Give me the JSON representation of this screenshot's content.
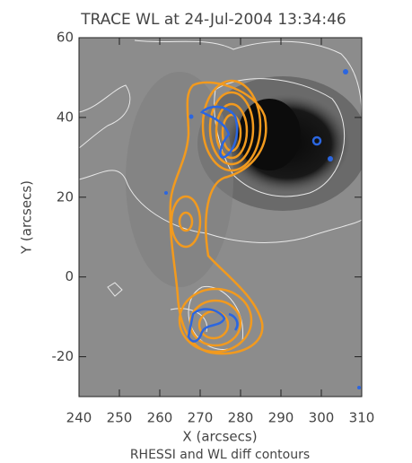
{
  "chart_data": {
    "type": "image",
    "title": "TRACE WL at 24-Jul-2004 13:34:46",
    "x_label": "X (arcsecs)",
    "y_label": "Y (arcsecs)",
    "caption": "RHESSI and WL diff contours",
    "xlim": [
      240,
      310
    ],
    "xticks": [
      240,
      250,
      260,
      270,
      280,
      290,
      300,
      310
    ],
    "ylim": [
      -30,
      60
    ],
    "yticks": [
      -20,
      0,
      20,
      40,
      60
    ]
  }
}
